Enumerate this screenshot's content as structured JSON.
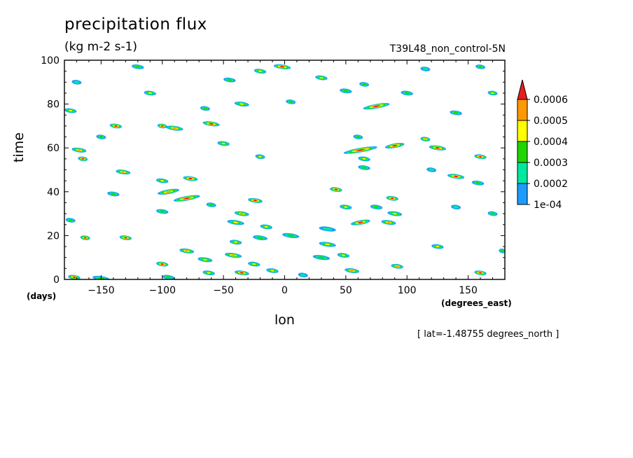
{
  "chart_data": {
    "type": "heatmap",
    "title": "precipitation flux",
    "units": "(kg m-2 s-1)",
    "dataset": "T39L48_non_control-5N",
    "xlabel": "lon",
    "ylabel": "time",
    "xunits": "(degrees_east)",
    "yunits": "(days)",
    "xlim": [
      -180,
      180
    ],
    "ylim": [
      0,
      100
    ],
    "xticks": [
      -150,
      -100,
      -50,
      0,
      50,
      100,
      150
    ],
    "yticks": [
      0,
      20,
      40,
      60,
      80,
      100
    ],
    "colorbar": {
      "levels": [
        "1e-04",
        "0.0002",
        "0.0003",
        "0.0004",
        "0.0005",
        "0.0006"
      ],
      "colors": [
        "#1e9bff",
        "#00e8a0",
        "#22d400",
        "#ffff00",
        "#ff9900",
        "#e61e1e"
      ]
    },
    "footer": "[ lat=-1.48755 degrees_north ]",
    "blobs": [
      {
        "lon": -172,
        "t": 1,
        "len": 10,
        "level": 5
      },
      {
        "lon": -150,
        "t": 0.5,
        "len": 14,
        "level": 2
      },
      {
        "lon": -95,
        "t": 1,
        "len": 10,
        "level": 2
      },
      {
        "lon": -62,
        "t": 3,
        "len": 10,
        "level": 3
      },
      {
        "lon": -35,
        "t": 3,
        "len": 12,
        "level": 5
      },
      {
        "lon": -10,
        "t": 4,
        "len": 10,
        "level": 3
      },
      {
        "lon": 15,
        "t": 2,
        "len": 8,
        "level": 1
      },
      {
        "lon": 55,
        "t": 4,
        "len": 12,
        "level": 4
      },
      {
        "lon": 92,
        "t": 6,
        "len": 10,
        "level": 4
      },
      {
        "lon": 160,
        "t": 3,
        "len": 10,
        "level": 5
      },
      {
        "lon": -100,
        "t": 7,
        "len": 10,
        "level": 5
      },
      {
        "lon": -65,
        "t": 9,
        "len": 12,
        "level": 3
      },
      {
        "lon": -42,
        "t": 11,
        "len": 14,
        "level": 4
      },
      {
        "lon": -25,
        "t": 7,
        "len": 10,
        "level": 3
      },
      {
        "lon": 30,
        "t": 10,
        "len": 14,
        "level": 2
      },
      {
        "lon": 48,
        "t": 11,
        "len": 10,
        "level": 3
      },
      {
        "lon": 125,
        "t": 15,
        "len": 10,
        "level": 3
      },
      {
        "lon": 178,
        "t": 13,
        "len": 6,
        "level": 2
      },
      {
        "lon": -80,
        "t": 13,
        "len": 12,
        "level": 4
      },
      {
        "lon": -40,
        "t": 17,
        "len": 10,
        "level": 3
      },
      {
        "lon": 35,
        "t": 16,
        "len": 14,
        "level": 3
      },
      {
        "lon": -163,
        "t": 19,
        "len": 8,
        "level": 5
      },
      {
        "lon": -130,
        "t": 19,
        "len": 10,
        "level": 5
      },
      {
        "lon": -20,
        "t": 19,
        "len": 12,
        "level": 2
      },
      {
        "lon": 5,
        "t": 20,
        "len": 14,
        "level": 2
      },
      {
        "lon": 35,
        "t": 23,
        "len": 14,
        "level": 1
      },
      {
        "lon": -15,
        "t": 24,
        "len": 10,
        "level": 3
      },
      {
        "lon": -40,
        "t": 26,
        "len": 14,
        "level": 3
      },
      {
        "lon": 62,
        "t": 26,
        "len": 16,
        "level": 5
      },
      {
        "lon": 85,
        "t": 26,
        "len": 12,
        "level": 4
      },
      {
        "lon": -175,
        "t": 27,
        "len": 8,
        "level": 2
      },
      {
        "lon": -35,
        "t": 30,
        "len": 12,
        "level": 4
      },
      {
        "lon": 90,
        "t": 30,
        "len": 12,
        "level": 3
      },
      {
        "lon": 170,
        "t": 30,
        "len": 8,
        "level": 2
      },
      {
        "lon": -100,
        "t": 31,
        "len": 10,
        "level": 2
      },
      {
        "lon": 50,
        "t": 33,
        "len": 10,
        "level": 3
      },
      {
        "lon": 75,
        "t": 33,
        "len": 10,
        "level": 2
      },
      {
        "lon": 140,
        "t": 33,
        "len": 8,
        "level": 1
      },
      {
        "lon": -60,
        "t": 34,
        "len": 8,
        "level": 2
      },
      {
        "lon": -80,
        "t": 37,
        "len": 22,
        "level": 5
      },
      {
        "lon": -95,
        "t": 40,
        "len": 18,
        "level": 4
      },
      {
        "lon": -24,
        "t": 36,
        "len": 12,
        "level": 5
      },
      {
        "lon": 88,
        "t": 37,
        "len": 10,
        "level": 5
      },
      {
        "lon": 42,
        "t": 41,
        "len": 10,
        "level": 5
      },
      {
        "lon": -140,
        "t": 39,
        "len": 10,
        "level": 2
      },
      {
        "lon": -100,
        "t": 45,
        "len": 10,
        "level": 3
      },
      {
        "lon": -77,
        "t": 46,
        "len": 12,
        "level": 5
      },
      {
        "lon": 158,
        "t": 44,
        "len": 10,
        "level": 2
      },
      {
        "lon": 140,
        "t": 47,
        "len": 14,
        "level": 5
      },
      {
        "lon": -132,
        "t": 49,
        "len": 12,
        "level": 4
      },
      {
        "lon": 120,
        "t": 50,
        "len": 8,
        "level": 1
      },
      {
        "lon": 65,
        "t": 51,
        "len": 10,
        "level": 2
      },
      {
        "lon": -165,
        "t": 55,
        "len": 8,
        "level": 5
      },
      {
        "lon": 160,
        "t": 56,
        "len": 10,
        "level": 5
      },
      {
        "lon": 65,
        "t": 55,
        "len": 10,
        "level": 3
      },
      {
        "lon": -20,
        "t": 56,
        "len": 8,
        "level": 3
      },
      {
        "lon": 62,
        "t": 59,
        "len": 28,
        "level": 5
      },
      {
        "lon": 90,
        "t": 61,
        "len": 16,
        "level": 5
      },
      {
        "lon": 125,
        "t": 60,
        "len": 14,
        "level": 5
      },
      {
        "lon": -168,
        "t": 59,
        "len": 12,
        "level": 4
      },
      {
        "lon": -50,
        "t": 62,
        "len": 10,
        "level": 3
      },
      {
        "lon": 115,
        "t": 64,
        "len": 8,
        "level": 4
      },
      {
        "lon": 60,
        "t": 65,
        "len": 8,
        "level": 2
      },
      {
        "lon": -150,
        "t": 65,
        "len": 8,
        "level": 2
      },
      {
        "lon": -138,
        "t": 70,
        "len": 10,
        "level": 5
      },
      {
        "lon": -90,
        "t": 69,
        "len": 14,
        "level": 4
      },
      {
        "lon": -60,
        "t": 71,
        "len": 14,
        "level": 5
      },
      {
        "lon": -100,
        "t": 70,
        "len": 8,
        "level": 5
      },
      {
        "lon": 75,
        "t": 79,
        "len": 22,
        "level": 5
      },
      {
        "lon": -175,
        "t": 77,
        "len": 10,
        "level": 3
      },
      {
        "lon": 140,
        "t": 76,
        "len": 10,
        "level": 2
      },
      {
        "lon": -35,
        "t": 80,
        "len": 12,
        "level": 3
      },
      {
        "lon": 5,
        "t": 81,
        "len": 8,
        "level": 2
      },
      {
        "lon": -65,
        "t": 78,
        "len": 8,
        "level": 2
      },
      {
        "lon": -110,
        "t": 85,
        "len": 10,
        "level": 3
      },
      {
        "lon": 100,
        "t": 85,
        "len": 10,
        "level": 2
      },
      {
        "lon": 170,
        "t": 85,
        "len": 8,
        "level": 3
      },
      {
        "lon": 50,
        "t": 86,
        "len": 10,
        "level": 2
      },
      {
        "lon": 30,
        "t": 92,
        "len": 10,
        "level": 3
      },
      {
        "lon": 65,
        "t": 89,
        "len": 8,
        "level": 2
      },
      {
        "lon": -45,
        "t": 91,
        "len": 10,
        "level": 2
      },
      {
        "lon": -2,
        "t": 97,
        "len": 14,
        "level": 5
      },
      {
        "lon": -120,
        "t": 97,
        "len": 10,
        "level": 2
      },
      {
        "lon": 160,
        "t": 97,
        "len": 8,
        "level": 2
      },
      {
        "lon": -20,
        "t": 95,
        "len": 10,
        "level": 3
      },
      {
        "lon": 115,
        "t": 96,
        "len": 8,
        "level": 1
      },
      {
        "lon": -170,
        "t": 90,
        "len": 8,
        "level": 1
      }
    ]
  }
}
